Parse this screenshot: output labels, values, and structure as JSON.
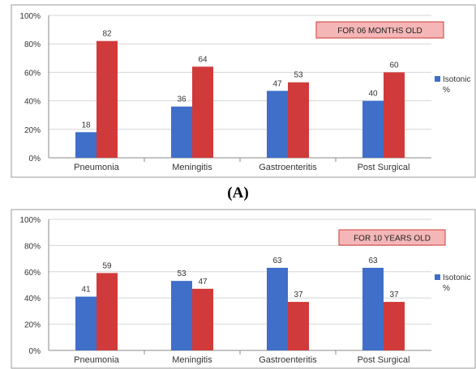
{
  "panel_labels": {
    "a": "(A)"
  },
  "colors": {
    "isotonic": "#3f6fc9",
    "hypotonic": "#d13a3a",
    "badge_fill": "#f4b6b6",
    "badge_border": "#d13a3a",
    "grid": "#d6d6d6"
  },
  "chart_data": [
    {
      "type": "bar",
      "annotation": "FOR 06 MONTHS OLD",
      "categories": [
        "Pneumonia",
        "Meningitis",
        "Gastroenteritis",
        "Post Surgical"
      ],
      "series": [
        {
          "name": "Isotonic %",
          "values": [
            18,
            36,
            47,
            40
          ]
        },
        {
          "values": [
            82,
            64,
            53,
            60
          ]
        }
      ],
      "data_labels": [
        [
          "18",
          "36",
          "47",
          "40"
        ],
        [
          "82",
          "64",
          "53",
          "60"
        ]
      ],
      "ylim": [
        0,
        100
      ],
      "yticks": [
        "0%",
        "20%",
        "40%",
        "60%",
        "80%",
        "100%"
      ],
      "legend": "right",
      "grid": true
    },
    {
      "type": "bar",
      "annotation": "FOR 10 YEARS OLD",
      "categories": [
        "Pneumonia",
        "Meningitis",
        "Gastroenteritis",
        "Post Surgical"
      ],
      "series": [
        {
          "name": "Isotonic %",
          "values": [
            41,
            53,
            63,
            63
          ]
        },
        {
          "values": [
            59,
            47,
            37,
            37
          ]
        }
      ],
      "data_labels": [
        [
          "41",
          "53",
          "63",
          "63"
        ],
        [
          "59",
          "47",
          "37",
          "37"
        ]
      ],
      "ylim": [
        0,
        100
      ],
      "yticks": [
        "0%",
        "20%",
        "40%",
        "60%",
        "80%",
        "100%"
      ],
      "legend": "right",
      "grid": true
    }
  ]
}
